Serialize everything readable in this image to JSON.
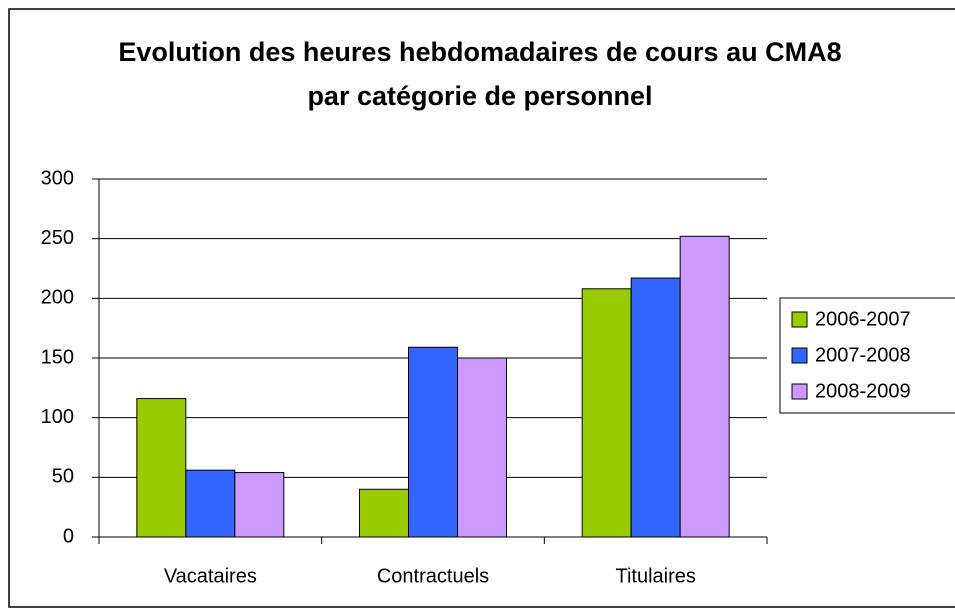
{
  "chart_data": {
    "type": "bar",
    "title": "Evolution des heures hebdomadaires de cours au CMA8 par catégorie de personnel",
    "categories": [
      "Vacataires",
      "Contractuels",
      "Titulaires"
    ],
    "series": [
      {
        "name": "2006-2007",
        "color": "#99cc00",
        "values": [
          116,
          40,
          208
        ]
      },
      {
        "name": "2007-2008",
        "color": "#3366ff",
        "values": [
          56,
          159,
          217
        ]
      },
      {
        "name": "2008-2009",
        "color": "#cc99ff",
        "values": [
          54,
          150,
          252
        ]
      }
    ],
    "ylim": [
      0,
      300
    ],
    "yticks": [
      0,
      50,
      100,
      150,
      200,
      250,
      300
    ],
    "grid": true,
    "legend": "right"
  }
}
